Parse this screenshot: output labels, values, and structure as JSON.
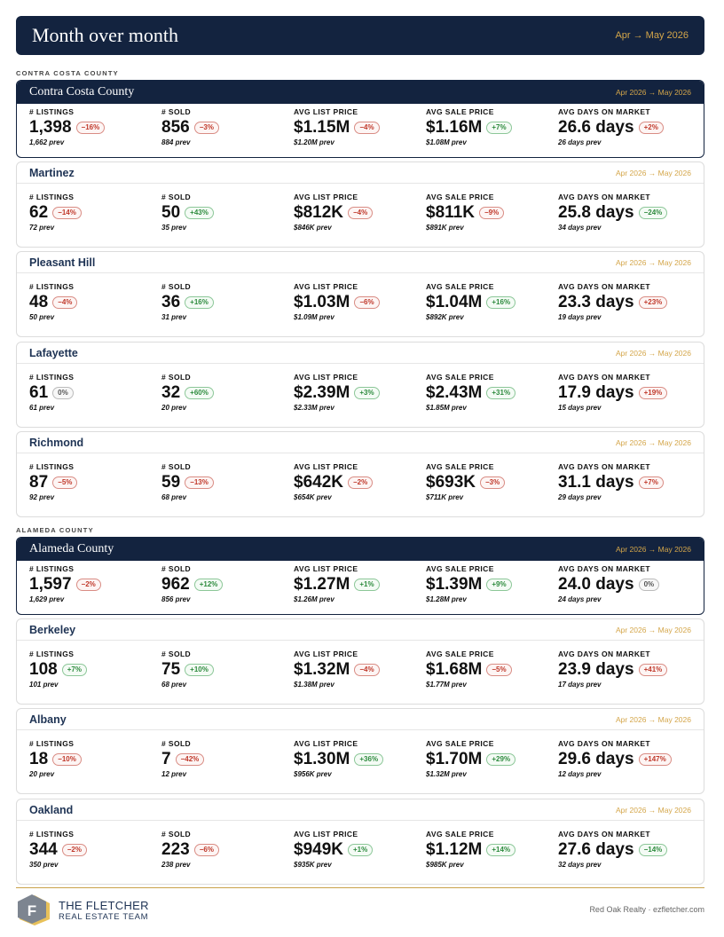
{
  "header": {
    "title": "Month over month",
    "range": "Apr → May 2026"
  },
  "sections": [
    {
      "label": "CONTRA COSTA COUNTY",
      "cards": [
        {
          "name": "Contra Costa County",
          "period": "Apr 2026 → May 2026",
          "county": true,
          "metrics": [
            {
              "label": "# LISTINGS",
              "value": "1,398",
              "change": "−16%",
              "dir": "down",
              "prev": "1,662 prev"
            },
            {
              "label": "# SOLD",
              "value": "856",
              "change": "−3%",
              "dir": "down",
              "prev": "884 prev"
            },
            {
              "label": "AVG LIST PRICE",
              "value": "$1.15M",
              "change": "−4%",
              "dir": "down",
              "prev": "$1.20M prev"
            },
            {
              "label": "AVG SALE PRICE",
              "value": "$1.16M",
              "change": "+7%",
              "dir": "up",
              "prev": "$1.08M prev"
            },
            {
              "label": "AVG DAYS ON MARKET",
              "value": "26.6 days",
              "change": "+2%",
              "dir": "down",
              "prev": "26 days prev"
            }
          ]
        },
        {
          "name": "Martinez",
          "period": "Apr 2026 → May 2026",
          "county": false,
          "metrics": [
            {
              "label": "# LISTINGS",
              "value": "62",
              "change": "−14%",
              "dir": "down",
              "prev": "72 prev"
            },
            {
              "label": "# SOLD",
              "value": "50",
              "change": "+43%",
              "dir": "up",
              "prev": "35 prev"
            },
            {
              "label": "AVG LIST PRICE",
              "value": "$812K",
              "change": "−4%",
              "dir": "down",
              "prev": "$846K prev"
            },
            {
              "label": "AVG SALE PRICE",
              "value": "$811K",
              "change": "−9%",
              "dir": "down",
              "prev": "$891K prev"
            },
            {
              "label": "AVG DAYS ON MARKET",
              "value": "25.8 days",
              "change": "−24%",
              "dir": "up",
              "prev": "34 days prev"
            }
          ]
        },
        {
          "name": "Pleasant Hill",
          "period": "Apr 2026 → May 2026",
          "county": false,
          "metrics": [
            {
              "label": "# LISTINGS",
              "value": "48",
              "change": "−4%",
              "dir": "down",
              "prev": "50 prev"
            },
            {
              "label": "# SOLD",
              "value": "36",
              "change": "+16%",
              "dir": "up",
              "prev": "31 prev"
            },
            {
              "label": "AVG LIST PRICE",
              "value": "$1.03M",
              "change": "−6%",
              "dir": "down",
              "prev": "$1.09M prev"
            },
            {
              "label": "AVG SALE PRICE",
              "value": "$1.04M",
              "change": "+16%",
              "dir": "up",
              "prev": "$892K prev"
            },
            {
              "label": "AVG DAYS ON MARKET",
              "value": "23.3 days",
              "change": "+23%",
              "dir": "down",
              "prev": "19 days prev"
            }
          ]
        },
        {
          "name": "Lafayette",
          "period": "Apr 2026 → May 2026",
          "county": false,
          "metrics": [
            {
              "label": "# LISTINGS",
              "value": "61",
              "change": "0%",
              "dir": "flat",
              "prev": "61 prev"
            },
            {
              "label": "# SOLD",
              "value": "32",
              "change": "+60%",
              "dir": "up",
              "prev": "20 prev"
            },
            {
              "label": "AVG LIST PRICE",
              "value": "$2.39M",
              "change": "+3%",
              "dir": "up",
              "prev": "$2.33M prev"
            },
            {
              "label": "AVG SALE PRICE",
              "value": "$2.43M",
              "change": "+31%",
              "dir": "up",
              "prev": "$1.85M prev"
            },
            {
              "label": "AVG DAYS ON MARKET",
              "value": "17.9 days",
              "change": "+19%",
              "dir": "down",
              "prev": "15 days prev"
            }
          ]
        },
        {
          "name": "Richmond",
          "period": "Apr 2026 → May 2026",
          "county": false,
          "metrics": [
            {
              "label": "# LISTINGS",
              "value": "87",
              "change": "−5%",
              "dir": "down",
              "prev": "92 prev"
            },
            {
              "label": "# SOLD",
              "value": "59",
              "change": "−13%",
              "dir": "down",
              "prev": "68 prev"
            },
            {
              "label": "AVG LIST PRICE",
              "value": "$642K",
              "change": "−2%",
              "dir": "down",
              "prev": "$654K prev"
            },
            {
              "label": "AVG SALE PRICE",
              "value": "$693K",
              "change": "−3%",
              "dir": "down",
              "prev": "$711K prev"
            },
            {
              "label": "AVG DAYS ON MARKET",
              "value": "31.1 days",
              "change": "+7%",
              "dir": "down",
              "prev": "29 days prev"
            }
          ]
        }
      ]
    },
    {
      "label": "ALAMEDA COUNTY",
      "cards": [
        {
          "name": "Alameda County",
          "period": "Apr 2026 → May 2026",
          "county": true,
          "metrics": [
            {
              "label": "# LISTINGS",
              "value": "1,597",
              "change": "−2%",
              "dir": "down",
              "prev": "1,629 prev"
            },
            {
              "label": "# SOLD",
              "value": "962",
              "change": "+12%",
              "dir": "up",
              "prev": "856 prev"
            },
            {
              "label": "AVG LIST PRICE",
              "value": "$1.27M",
              "change": "+1%",
              "dir": "up",
              "prev": "$1.26M prev"
            },
            {
              "label": "AVG SALE PRICE",
              "value": "$1.39M",
              "change": "+9%",
              "dir": "up",
              "prev": "$1.28M prev"
            },
            {
              "label": "AVG DAYS ON MARKET",
              "value": "24.0 days",
              "change": "0%",
              "dir": "flat",
              "prev": "24 days prev"
            }
          ]
        },
        {
          "name": "Berkeley",
          "period": "Apr 2026 → May 2026",
          "county": false,
          "metrics": [
            {
              "label": "# LISTINGS",
              "value": "108",
              "change": "+7%",
              "dir": "up",
              "prev": "101 prev"
            },
            {
              "label": "# SOLD",
              "value": "75",
              "change": "+10%",
              "dir": "up",
              "prev": "68 prev"
            },
            {
              "label": "AVG LIST PRICE",
              "value": "$1.32M",
              "change": "−4%",
              "dir": "down",
              "prev": "$1.38M prev"
            },
            {
              "label": "AVG SALE PRICE",
              "value": "$1.68M",
              "change": "−5%",
              "dir": "down",
              "prev": "$1.77M prev"
            },
            {
              "label": "AVG DAYS ON MARKET",
              "value": "23.9 days",
              "change": "+41%",
              "dir": "down",
              "prev": "17 days prev"
            }
          ]
        },
        {
          "name": "Albany",
          "period": "Apr 2026 → May 2026",
          "county": false,
          "metrics": [
            {
              "label": "# LISTINGS",
              "value": "18",
              "change": "−10%",
              "dir": "down",
              "prev": "20 prev"
            },
            {
              "label": "# SOLD",
              "value": "7",
              "change": "−42%",
              "dir": "down",
              "prev": "12 prev"
            },
            {
              "label": "AVG LIST PRICE",
              "value": "$1.30M",
              "change": "+36%",
              "dir": "up",
              "prev": "$956K prev"
            },
            {
              "label": "AVG SALE PRICE",
              "value": "$1.70M",
              "change": "+29%",
              "dir": "up",
              "prev": "$1.32M prev"
            },
            {
              "label": "AVG DAYS ON MARKET",
              "value": "29.6 days",
              "change": "+147%",
              "dir": "down",
              "prev": "12 days prev"
            }
          ]
        },
        {
          "name": "Oakland",
          "period": "Apr 2026 → May 2026",
          "county": false,
          "metrics": [
            {
              "label": "# LISTINGS",
              "value": "344",
              "change": "−2%",
              "dir": "down",
              "prev": "350 prev"
            },
            {
              "label": "# SOLD",
              "value": "223",
              "change": "−6%",
              "dir": "down",
              "prev": "238 prev"
            },
            {
              "label": "AVG LIST PRICE",
              "value": "$949K",
              "change": "+1%",
              "dir": "up",
              "prev": "$935K prev"
            },
            {
              "label": "AVG SALE PRICE",
              "value": "$1.12M",
              "change": "+14%",
              "dir": "up",
              "prev": "$985K prev"
            },
            {
              "label": "AVG DAYS ON MARKET",
              "value": "27.6 days",
              "change": "−14%",
              "dir": "up",
              "prev": "32 days prev"
            }
          ]
        }
      ]
    }
  ],
  "footer": {
    "logo_line1": "THE FLETCHER",
    "logo_line2": "REAL ESTATE TEAM",
    "logo_letter": "F",
    "credit": "Red Oak Realty · ezfletcher.com"
  },
  "colors": {
    "navy": "#13233f",
    "gold": "#d4a64a",
    "down": "#c0392b",
    "up": "#2e8b3e"
  }
}
